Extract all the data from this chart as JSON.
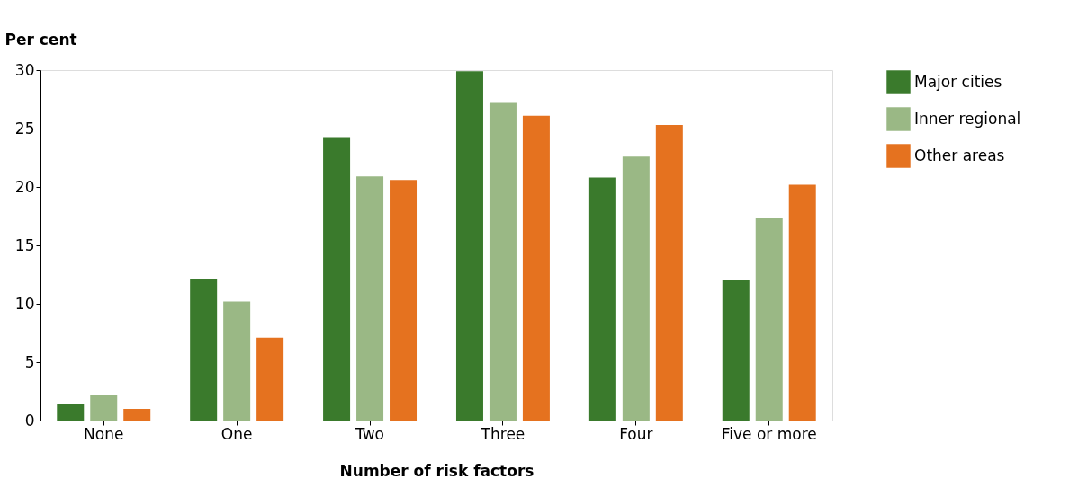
{
  "chart_data": {
    "type": "bar",
    "xlabel": "Number of risk factors",
    "ylabel": "Per cent",
    "categories": [
      "None",
      "One",
      "Two",
      "Three",
      "Four",
      "Five or more"
    ],
    "series": [
      {
        "name": "Major cities",
        "color": "#3a7a2c",
        "values": [
          1.4,
          12.1,
          24.2,
          29.9,
          20.8,
          12.0
        ]
      },
      {
        "name": "Inner regional",
        "color": "#9ab885",
        "values": [
          2.2,
          10.2,
          20.9,
          27.2,
          22.6,
          17.3
        ]
      },
      {
        "name": "Other areas",
        "color": "#e5721f",
        "values": [
          1.0,
          7.1,
          20.6,
          26.1,
          25.3,
          20.2
        ]
      }
    ],
    "ylim": [
      0,
      30
    ],
    "yticks": [
      0,
      5,
      10,
      15,
      20,
      25,
      30
    ],
    "grid": false,
    "legend": "right"
  }
}
